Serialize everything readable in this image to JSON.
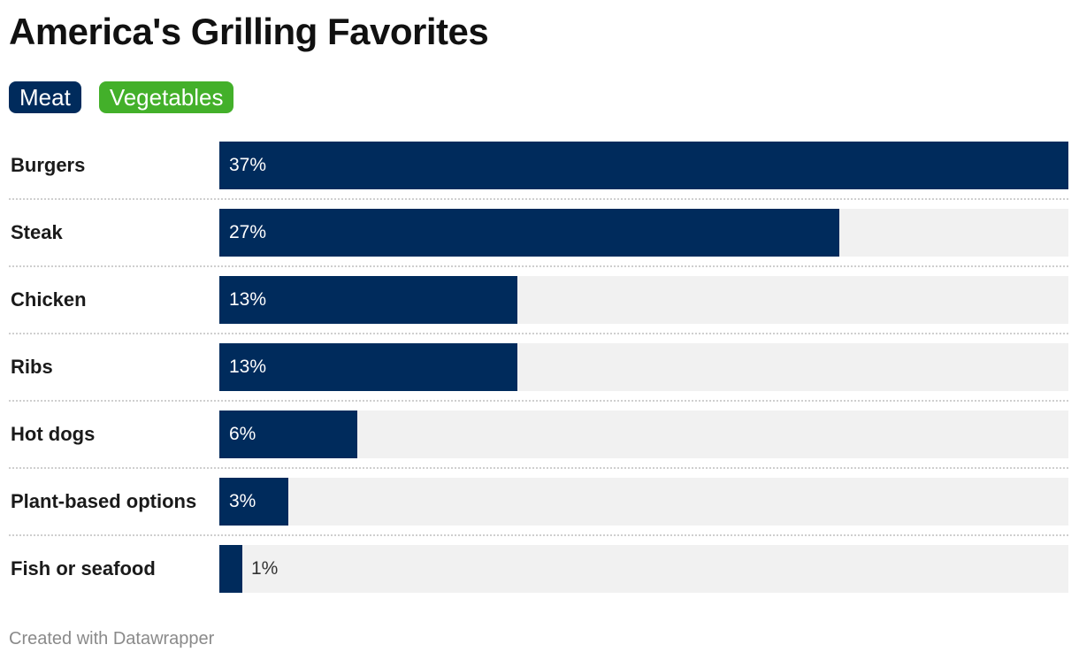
{
  "title": "America's Grilling Favorites",
  "legend": [
    {
      "label": "Meat",
      "color": "#002b5c"
    },
    {
      "label": "Vegetables",
      "color": "#43b02a"
    }
  ],
  "chart_data": {
    "type": "bar",
    "orientation": "horizontal",
    "title": "America's Grilling Favorites",
    "categories": [
      "Burgers",
      "Steak",
      "Chicken",
      "Ribs",
      "Hot dogs",
      "Plant-based options",
      "Fish or seafood"
    ],
    "values": [
      37,
      27,
      13,
      13,
      6,
      3,
      1
    ],
    "value_labels": [
      "37%",
      "27%",
      "13%",
      "13%",
      "6%",
      "3%",
      "1%"
    ],
    "unit": "%",
    "bar_color": "#002b5c",
    "track_color": "#f1f1f1",
    "xlim": [
      0,
      37
    ],
    "grid": false,
    "legend_position": "top-left"
  },
  "footer": "Created with Datawrapper"
}
